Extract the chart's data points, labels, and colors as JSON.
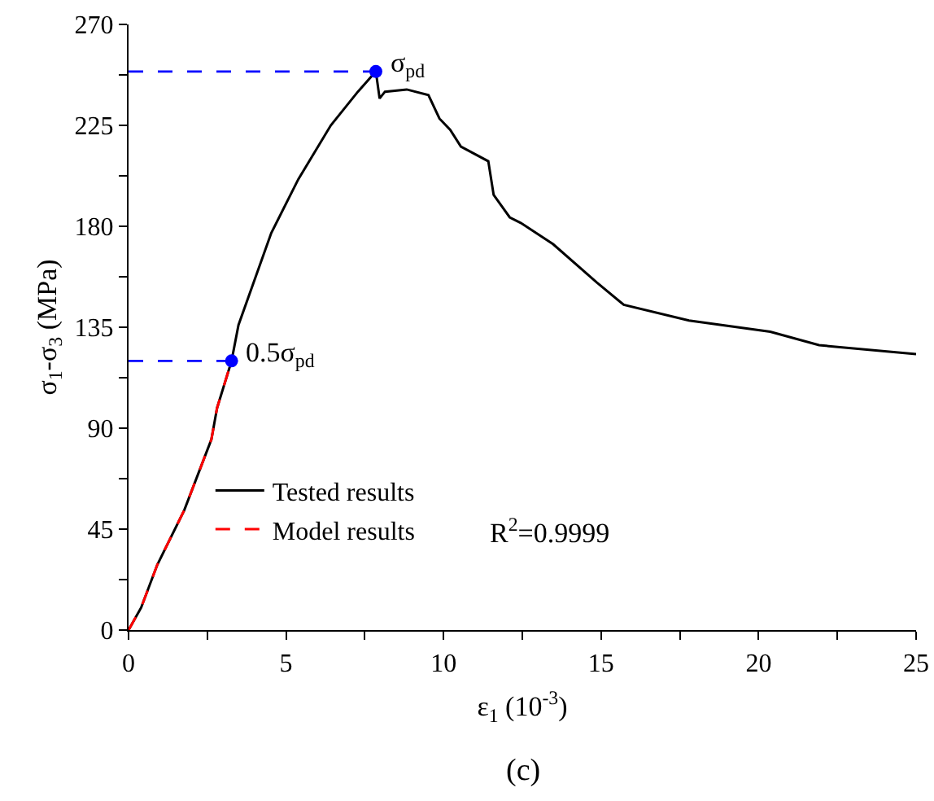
{
  "chart_data": {
    "type": "line",
    "xlabel": "ε$_{1}$ (10$^{-3}$)",
    "ylabel": "σ$_{1}$-σ$_{3}$ (MPa)",
    "xlim": [
      0,
      25
    ],
    "ylim": [
      0,
      270
    ],
    "xticks": [
      0,
      {
        "value": 2.5,
        "label": null
      },
      5,
      {
        "value": 7.5,
        "label": null
      },
      10,
      {
        "value": 12.5,
        "label": null
      },
      15,
      {
        "value": 17.5,
        "label": null
      },
      20,
      {
        "value": 22.5,
        "label": null
      },
      25
    ],
    "yticks": [
      0,
      {
        "value": 22.5,
        "label": null
      },
      45,
      {
        "value": 67.5,
        "label": null
      },
      90,
      {
        "value": 112.5,
        "label": null
      },
      135,
      {
        "value": 157.5,
        "label": null
      },
      180,
      {
        "value": 202.5,
        "label": null
      },
      225,
      {
        "value": 247.5,
        "label": null
      },
      270
    ],
    "legend": "bottom left",
    "series": [
      {
        "name": "Tested results",
        "color": "#000000",
        "line_style": "solid",
        "marker": "none",
        "x": [
          0,
          0.4,
          0.91,
          1.77,
          2.63,
          2.81,
          3.27,
          3.49,
          4.53,
          5.39,
          6.42,
          7.28,
          7.85,
          7.97,
          8.14,
          8.83,
          9.52,
          9.87,
          10.21,
          10.55,
          11.42,
          11.59,
          12.1,
          12.45,
          13.48,
          14.86,
          15.72,
          17.79,
          20.37,
          21.92,
          25.0
        ],
        "values": [
          0,
          10,
          29,
          53.5,
          85,
          99,
          120,
          136,
          177,
          201,
          225,
          240,
          249,
          237,
          240,
          241,
          238.5,
          228,
          223,
          215.5,
          209,
          194,
          184,
          181.5,
          172,
          155,
          145,
          138,
          133,
          127,
          123
        ]
      },
      {
        "name": "Model results",
        "color": "#ff0000",
        "line_style": "dashed",
        "marker": "none",
        "x": [
          0,
          0.4,
          0.91,
          1.77,
          2.63,
          2.81,
          3.27
        ],
        "values": [
          0,
          10,
          29,
          53.5,
          85,
          99,
          120
        ]
      },
      {
        "color": "#0000ff",
        "line_style": "dashed",
        "marker": "none",
        "x": [
          0,
          7.85
        ],
        "values": [
          249,
          249
        ]
      },
      {
        "color": "#0000ff",
        "line_style": "dashed",
        "marker": "none",
        "x": [
          0,
          3.27
        ],
        "values": [
          120,
          120
        ]
      },
      {
        "type": "scatter",
        "color": "#0000ff",
        "marker": "circle",
        "x": [
          3.27,
          7.85
        ],
        "values": [
          120,
          249
        ]
      }
    ],
    "annotations": [
      {
        "text": "σ$_{pd}$",
        "x": 7.85,
        "y": 249
      },
      {
        "text": "0.5σ$_{pd}$",
        "x": 3.27,
        "y": 120
      },
      "R$^{2}$=0.9999",
      "(c)"
    ]
  }
}
